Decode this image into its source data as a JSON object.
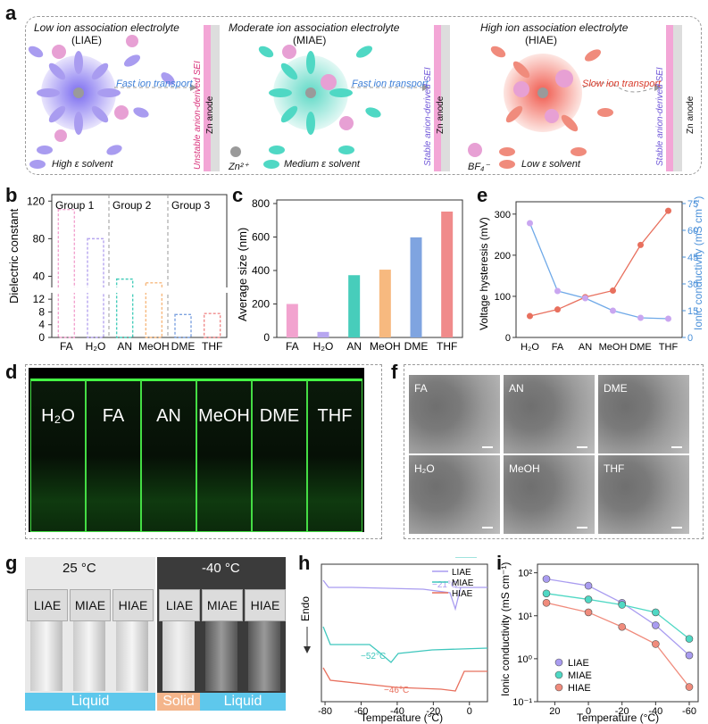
{
  "panels": {
    "a": "a",
    "b": "b",
    "c": "c",
    "d": "d",
    "e": "e",
    "f": "f",
    "g": "g",
    "h": "h",
    "i": "i"
  },
  "panel_a": {
    "liae_title": "Low ion association electrolyte",
    "liae_abbr": "(LIAE)",
    "miae_title": "Moderate ion association electrolyte",
    "miae_abbr": "(MIAE)",
    "hiae_title": "High ion association electrolyte",
    "hiae_abbr": "(HIAE)",
    "fast_ion_1": "Fast ion transport",
    "fast_ion_2": "Fast ion transport",
    "slow_ion": "Slow ion transport",
    "sei_unstable": "Unstable anion-derived SEI",
    "sei_stable_1": "Stable anion-derived SEI",
    "sei_stable_2": "Stable anion-derived SEI",
    "zn_anode": "Zn anode",
    "high_solvent": "High ε solvent",
    "medium_solvent": "Medium ε solvent",
    "low_solvent": "Low ε solvent",
    "zn_ion": "Zn²⁺",
    "bf4": "BF₄⁻",
    "colors": {
      "liae": "#a99cf0",
      "miae": "#4fd8c4",
      "hiae": "#f08b7c",
      "anion": "#e7a0d4"
    }
  },
  "panel_b_chart": {
    "type": "bar",
    "ylabel": "Dielectric constant",
    "categories": [
      "FA",
      "H₂O",
      "AN",
      "MeOH",
      "DME",
      "THF"
    ],
    "values": [
      111,
      80,
      37,
      33,
      7.2,
      7.5
    ],
    "groups": [
      "Group 1",
      "Group 2",
      "Group 3"
    ],
    "upper_ticks": [
      "40",
      "80",
      "120"
    ],
    "lower_ticks": [
      "0",
      "4",
      "8",
      "12"
    ],
    "colors": [
      "#f2a3cf",
      "#b7a6f0",
      "#47cdbb",
      "#f7b97f",
      "#7fa4e0",
      "#f08b8b"
    ]
  },
  "panel_c_chart": {
    "type": "bar",
    "ylabel": "Average size (nm)",
    "categories": [
      "FA",
      "H₂O",
      "AN",
      "MeOH",
      "DME",
      "THF"
    ],
    "values": [
      200,
      33,
      372,
      405,
      598,
      752
    ],
    "ylim": [
      0,
      800
    ],
    "yticks": [
      "0",
      "200",
      "400",
      "600",
      "800"
    ],
    "colors": [
      "#f2a3cf",
      "#b7a6f0",
      "#47cdbb",
      "#f7b97f",
      "#7fa4e0",
      "#f08b8b"
    ]
  },
  "panel_e_chart": {
    "type": "line",
    "ylabel_left": "Voltage hysteresis (mV)",
    "ylabel_right": "Ionic conductivity (mS cm⁻¹)",
    "categories": [
      "H₂O",
      "FA",
      "AN",
      "MeOH",
      "DME",
      "THF"
    ],
    "left_ticks": [
      "0",
      "100",
      "200",
      "300"
    ],
    "right_ticks": [
      "0",
      "15",
      "30",
      "45",
      "60",
      "75"
    ],
    "voltage_values": [
      52,
      68,
      98,
      114,
      225,
      308
    ],
    "conductivity_values": [
      64,
      26,
      22,
      15,
      11,
      10.5
    ],
    "colors": {
      "voltage": "#e8705e",
      "conductivity": "#6fa9e8"
    }
  },
  "panel_d": {
    "vials": [
      "H₂O",
      "FA",
      "AN",
      "MeOH",
      "DME",
      "THF"
    ]
  },
  "panel_f": {
    "labels": [
      "FA",
      "AN",
      "DME",
      "H₂O",
      "MeOH",
      "THF"
    ]
  },
  "panel_g": {
    "temp_left": "25 °C",
    "temp_right": "-40 °C",
    "caps": [
      "LIAE",
      "MIAE",
      "HIAE",
      "LIAE",
      "MIAE",
      "HIAE"
    ],
    "liquid_1": "Liquid",
    "solid": "Solid",
    "liquid_2": "Liquid"
  },
  "panel_h_chart": {
    "type": "line",
    "xlabel": "Temperature (°C)",
    "ylabel": "Endo",
    "xticks": [
      "-80",
      "-60",
      "-40",
      "-20",
      "0"
    ],
    "series": [
      {
        "name": "LIAE",
        "annotation": "−21°C",
        "color": "#a99cf0"
      },
      {
        "name": "MIAE",
        "annotation": "−52°C",
        "color": "#3fc7bd"
      },
      {
        "name": "HIAE",
        "annotation": "−46°C",
        "color": "#e8705e"
      }
    ]
  },
  "panel_i_chart": {
    "type": "line",
    "xlabel": "Temperature (°C)",
    "ylabel": "Ionic conductivity (mS cm⁻¹)",
    "x": [
      25,
      0,
      -20,
      -40,
      -60
    ],
    "xticks": [
      "20",
      "0",
      "-20",
      "-40",
      "-60"
    ],
    "yticks": [
      "10⁻¹",
      "10⁰",
      "10¹",
      "10²"
    ],
    "series": [
      {
        "name": "LIAE",
        "values": [
          72,
          50,
          20,
          6,
          1.2
        ],
        "color": "#a99cf0"
      },
      {
        "name": "MIAE",
        "values": [
          33,
          24,
          18,
          12,
          2.9
        ],
        "color": "#4fd8c4"
      },
      {
        "name": "HIAE",
        "values": [
          20,
          12,
          5.5,
          2.2,
          0.22
        ],
        "color": "#f08b7c"
      }
    ]
  }
}
